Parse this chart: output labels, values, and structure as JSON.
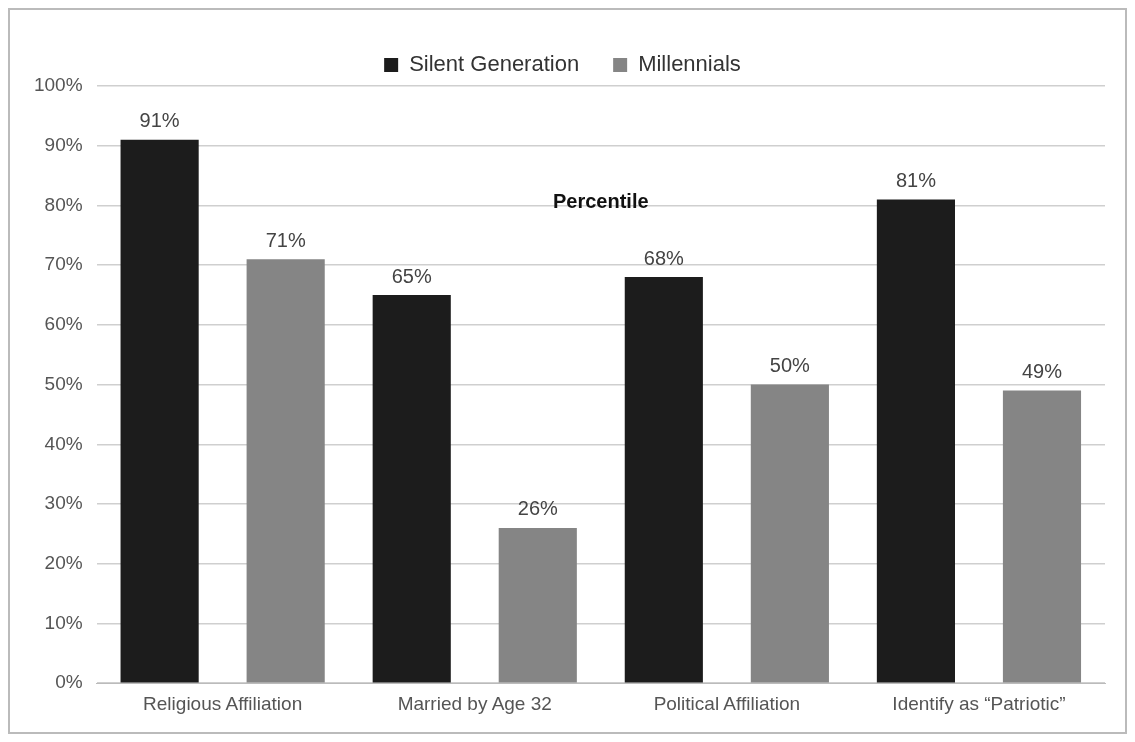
{
  "chart_data": {
    "type": "bar",
    "annotations": [
      "Percentile"
    ],
    "categories": [
      "Religious Affiliation",
      "Married by Age 32",
      "Political Affiliation",
      "Identify as “Patriotic”"
    ],
    "series": [
      {
        "name": "Silent Generation",
        "color": "#1c1c1c",
        "values": [
          91,
          65,
          68,
          81
        ],
        "value_labels": [
          "91%",
          "65%",
          "68%",
          "81%"
        ]
      },
      {
        "name": "Millennials",
        "color": "#858585",
        "values": [
          71,
          26,
          50,
          49
        ],
        "value_labels": [
          "71%",
          "26%",
          "50%",
          "49%"
        ]
      }
    ],
    "ylim": [
      0,
      100
    ],
    "yticks": [
      {
        "value": 0,
        "label": "0%"
      },
      {
        "value": 10,
        "label": "10%"
      },
      {
        "value": 20,
        "label": "20%"
      },
      {
        "value": 30,
        "label": "30%"
      },
      {
        "value": 40,
        "label": "40%"
      },
      {
        "value": 50,
        "label": "50%"
      },
      {
        "value": 60,
        "label": "60%"
      },
      {
        "value": 70,
        "label": "70%"
      },
      {
        "value": 80,
        "label": "80%"
      },
      {
        "value": 90,
        "label": "90%"
      },
      {
        "value": 100,
        "label": "100%"
      }
    ],
    "grid": "y",
    "legend": "top"
  }
}
